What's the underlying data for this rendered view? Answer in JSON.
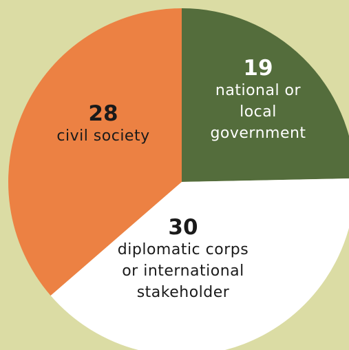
{
  "chart_data": {
    "type": "pie",
    "slices": [
      {
        "value": 19,
        "label": "national or local government",
        "lines": [
          "national or",
          "local",
          "government"
        ],
        "color": "#546d3c",
        "text_color": "#ffffff"
      },
      {
        "value": 30,
        "label": "diplomatic corps or international stakeholder",
        "lines": [
          "diplomatic corps",
          "or international",
          "stakeholder"
        ],
        "color": "#ffffff",
        "text_color": "#1a1a1a"
      },
      {
        "value": 28,
        "label": "civil society",
        "lines": [
          "civil society"
        ],
        "color": "#ec8143",
        "text_color": "#1a1a1a"
      }
    ],
    "start": "top",
    "direction": "clockwise"
  },
  "colors": {
    "background": "#dbdca4"
  }
}
